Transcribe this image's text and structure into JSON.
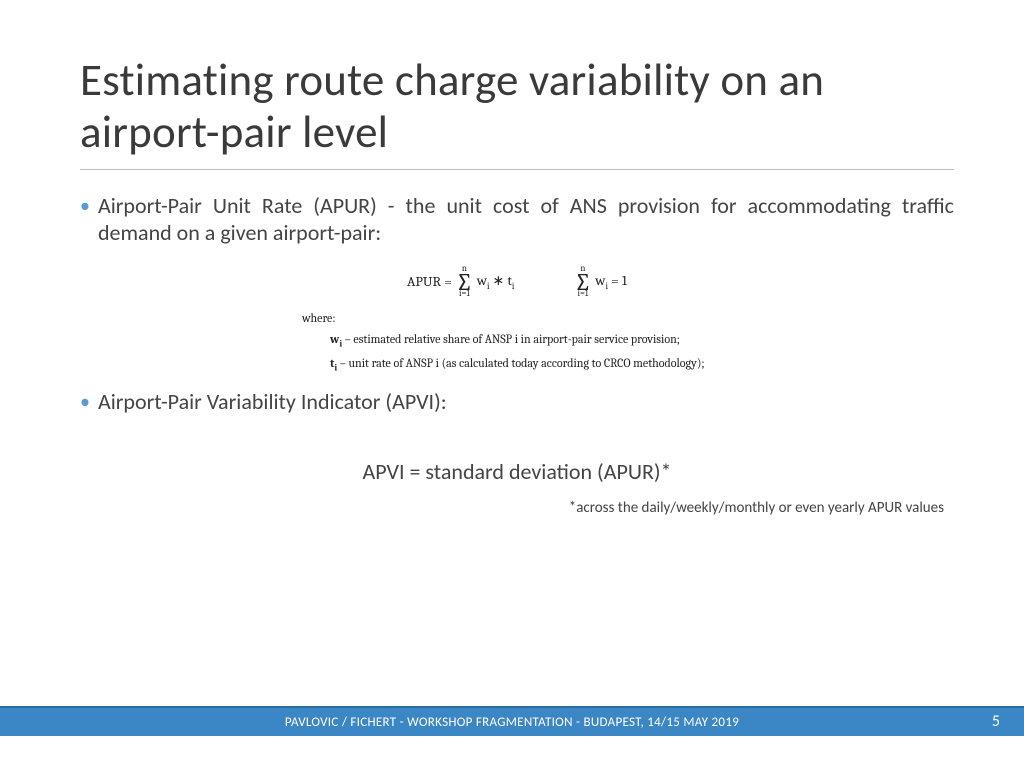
{
  "colors": {
    "bullet": "#5b9bd5",
    "footer_bg": "#3b86c4",
    "footer_border": "#2b6da3",
    "title": "#3a3a3a",
    "body": "#444444",
    "rule": "#bfbfbf"
  },
  "title": "Estimating route charge variability on an airport-pair level",
  "bullets": [
    "Airport-Pair Unit Rate (APUR) - the unit cost of ANS provision for accommodating traffic demand on a given airport-pair:",
    "Airport-Pair Variability Indicator (APVI):"
  ],
  "formula": {
    "lhs": "APUR =",
    "sigma_top": "n",
    "sigma_bot": "i=1",
    "term1": "w",
    "term1_sub": "i",
    "op": " ∗ ",
    "term2": "t",
    "term2_sub": "i",
    "eq2_rhs": " = 1",
    "where": "where:",
    "def_w_var": "w",
    "def_w_sub": "i",
    "def_w_text": " – estimated relative share of ANSP i in airport-pair service provision;",
    "def_t_var": "t",
    "def_t_sub": "i",
    "def_t_text": " – unit rate of ANSP i (as calculated today according to CRCO methodology);"
  },
  "apvi_formula": "APVI = standard deviation (APUR)*",
  "apvi_note": "*across the daily/weekly/monthly or even yearly APUR values",
  "footer": "PAVLOVIC / FICHERT - WORKSHOP FRAGMENTATION - BUDAPEST, 14/15 MAY 2019",
  "page_number": "5"
}
